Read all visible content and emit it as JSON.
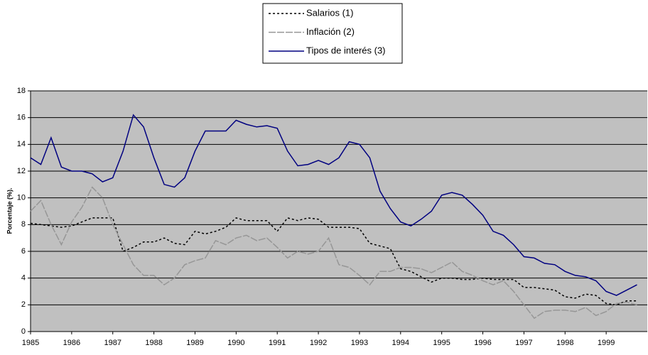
{
  "chart_data": {
    "type": "line",
    "y_label": "Porcentaje (%).",
    "x": [
      1985,
      1985.25,
      1985.5,
      1985.75,
      1986,
      1986.25,
      1986.5,
      1986.75,
      1987,
      1987.25,
      1987.5,
      1987.75,
      1988,
      1988.25,
      1988.5,
      1988.75,
      1989,
      1989.25,
      1989.5,
      1989.75,
      1990,
      1990.25,
      1990.5,
      1990.75,
      1991,
      1991.25,
      1991.5,
      1991.75,
      1992,
      1992.25,
      1992.5,
      1992.75,
      1993,
      1993.25,
      1993.5,
      1993.75,
      1994,
      1994.25,
      1994.5,
      1994.75,
      1995,
      1995.25,
      1995.5,
      1995.75,
      1996,
      1996.25,
      1996.5,
      1996.75,
      1997,
      1997.25,
      1997.5,
      1997.75,
      1998,
      1998.25,
      1998.5,
      1998.75,
      1999,
      1999.25,
      1999.5,
      1999.75
    ],
    "series": [
      {
        "name": "Salarios (1)",
        "color": "#000000",
        "style": "dotted",
        "values": [
          8.1,
          8.0,
          7.9,
          7.8,
          7.9,
          8.2,
          8.5,
          8.5,
          8.5,
          6.0,
          6.3,
          6.7,
          6.7,
          7.0,
          6.6,
          6.5,
          7.5,
          7.3,
          7.5,
          7.8,
          8.5,
          8.3,
          8.3,
          8.3,
          7.5,
          8.5,
          8.3,
          8.5,
          8.4,
          7.8,
          7.8,
          7.8,
          7.7,
          6.6,
          6.4,
          6.2,
          4.7,
          4.5,
          4.1,
          3.7,
          4.0,
          4.0,
          3.9,
          3.9,
          4.0,
          3.9,
          3.9,
          3.9,
          3.3,
          3.3,
          3.2,
          3.1,
          2.6,
          2.5,
          2.8,
          2.7,
          2.1,
          2.0,
          2.3,
          2.3
        ]
      },
      {
        "name": "Inflación (2)",
        "color": "#969696",
        "style": "dashed",
        "values": [
          9.0,
          9.8,
          8.0,
          6.5,
          8.2,
          9.3,
          10.8,
          10.0,
          8.0,
          6.5,
          5.0,
          4.2,
          4.2,
          3.5,
          4.0,
          5.0,
          5.3,
          5.5,
          6.8,
          6.5,
          7.0,
          7.2,
          6.8,
          7.0,
          6.3,
          5.5,
          6.0,
          5.8,
          6.0,
          7.0,
          5.0,
          4.8,
          4.2,
          3.5,
          4.5,
          4.5,
          4.8,
          4.8,
          4.7,
          4.4,
          4.8,
          5.2,
          4.5,
          4.2,
          3.8,
          3.5,
          3.8,
          3.0,
          2.0,
          1.0,
          1.5,
          1.6,
          1.6,
          1.5,
          1.8,
          1.2,
          1.5,
          2.1,
          2.2,
          2.0
        ]
      },
      {
        "name": "Tipos de interés (3)",
        "color": "#000080",
        "style": "solid",
        "values": [
          13.0,
          12.5,
          14.5,
          12.3,
          12.0,
          12.0,
          11.8,
          11.2,
          11.5,
          13.5,
          16.2,
          15.3,
          13.0,
          11.0,
          10.8,
          11.5,
          13.5,
          15.0,
          15.0,
          15.0,
          15.8,
          15.5,
          15.3,
          15.4,
          15.2,
          13.5,
          12.4,
          12.5,
          12.8,
          12.5,
          13.0,
          14.2,
          14.0,
          13.0,
          10.5,
          9.2,
          8.2,
          7.9,
          8.4,
          9.0,
          10.2,
          10.4,
          10.2,
          9.5,
          8.7,
          7.5,
          7.2,
          6.5,
          5.6,
          5.5,
          5.1,
          5.0,
          4.5,
          4.2,
          4.1,
          3.8,
          3.0,
          2.7,
          3.1,
          3.5
        ]
      }
    ],
    "xlim": [
      1985,
      2000
    ],
    "xticks": [
      1985,
      1986,
      1987,
      1988,
      1989,
      1990,
      1991,
      1992,
      1993,
      1994,
      1995,
      1996,
      1997,
      1998,
      1999
    ],
    "ylim": [
      0,
      18
    ],
    "yticks": [
      0,
      2,
      4,
      6,
      8,
      10,
      12,
      14,
      16,
      18
    ],
    "grid": true
  }
}
